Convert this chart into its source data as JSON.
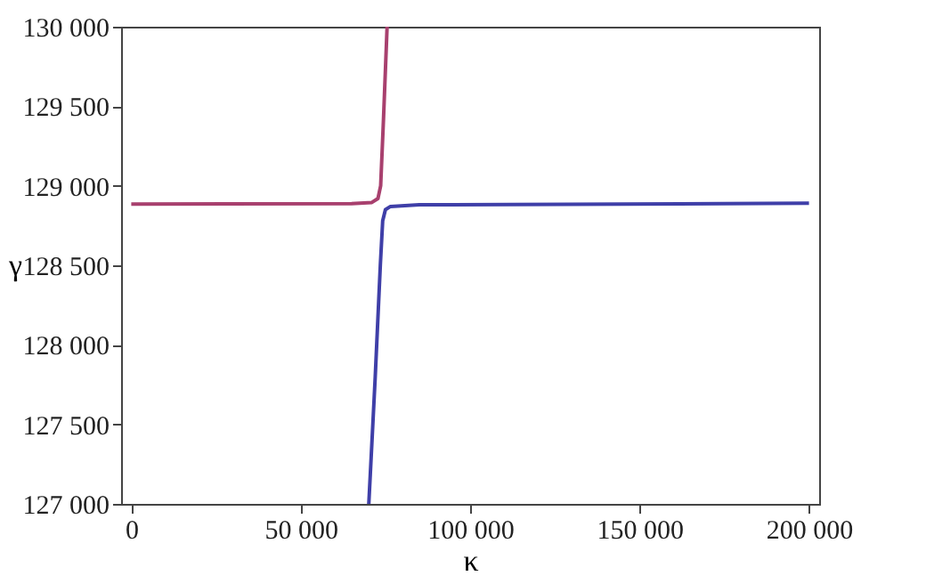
{
  "chart_data": {
    "type": "line",
    "xlabel": "κ",
    "ylabel": "γ",
    "xlim": [
      -3000,
      203000
    ],
    "ylim": [
      127000,
      130000
    ],
    "xticks": [
      {
        "value": 0,
        "label": "0"
      },
      {
        "value": 50000,
        "label": "50 000"
      },
      {
        "value": 100000,
        "label": "100 000"
      },
      {
        "value": 150000,
        "label": "150 000"
      },
      {
        "value": 200000,
        "label": "200 000"
      }
    ],
    "yticks": [
      {
        "value": 127000,
        "label": "127 000"
      },
      {
        "value": 127500,
        "label": "127 500"
      },
      {
        "value": 128000,
        "label": "128 000"
      },
      {
        "value": 128500,
        "label": "128 500"
      },
      {
        "value": 129000,
        "label": "129 000"
      },
      {
        "value": 129500,
        "label": "129 500"
      },
      {
        "value": 130000,
        "label": "130 000"
      }
    ],
    "grid": false,
    "line_style": "solid",
    "series": [
      {
        "color": "#a8406e",
        "x": [
          0,
          65000,
          71000,
          72800,
          73600,
          74400,
          75500
        ],
        "values": [
          128885,
          128887,
          128895,
          128920,
          129000,
          129400,
          130000
        ]
      },
      {
        "color": "#3f3fa8",
        "x": [
          70100,
          72000,
          73500,
          74200,
          75000,
          76500,
          85000,
          200000
        ],
        "values": [
          127000,
          127800,
          128500,
          128780,
          128850,
          128870,
          128880,
          128890
        ]
      }
    ]
  }
}
